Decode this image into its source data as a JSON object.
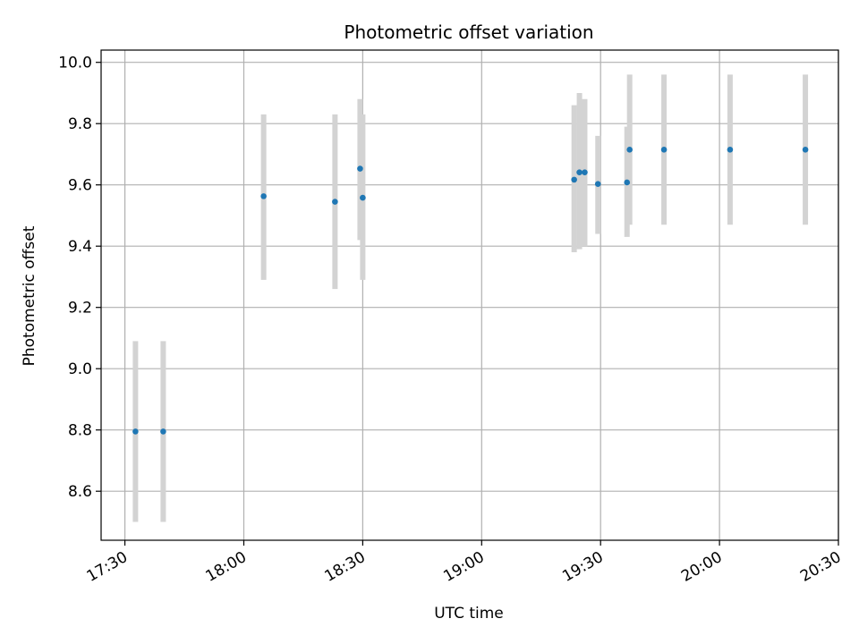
{
  "chart_data": {
    "type": "scatter",
    "title": "Photometric offset variation",
    "xlabel": "UTC time",
    "ylabel": "Photometric offset",
    "grid": true,
    "legend": "none",
    "colors": {
      "point": "#1f77b4",
      "errorbar": "#d3d3d3",
      "grid": "#b0b0b0",
      "axis": "#000000"
    },
    "xlim": [
      "17:24",
      "20:30"
    ],
    "ylim": [
      8.44,
      10.04
    ],
    "x_ticks": [
      "17:30",
      "18:00",
      "18:30",
      "19:00",
      "19:30",
      "20:00",
      "20:30"
    ],
    "y_ticks": [
      "8.6",
      "8.8",
      "9.0",
      "9.2",
      "9.4",
      "9.6",
      "9.8",
      "10.0"
    ],
    "points": [
      {
        "time": "17:32:40",
        "y": 8.795,
        "err_low": 8.5,
        "err_high": 9.09
      },
      {
        "time": "17:39:40",
        "y": 8.795,
        "err_low": 8.5,
        "err_high": 9.09
      },
      {
        "time": "18:05:00",
        "y": 9.563,
        "err_low": 9.29,
        "err_high": 9.83
      },
      {
        "time": "18:23:00",
        "y": 9.545,
        "err_low": 9.26,
        "err_high": 9.83
      },
      {
        "time": "18:29:20",
        "y": 9.653,
        "err_low": 9.42,
        "err_high": 9.88
      },
      {
        "time": "18:30:00",
        "y": 9.558,
        "err_low": 9.29,
        "err_high": 9.83
      },
      {
        "time": "19:23:20",
        "y": 9.617,
        "err_low": 9.38,
        "err_high": 9.86
      },
      {
        "time": "19:24:40",
        "y": 9.641,
        "err_low": 9.39,
        "err_high": 9.9
      },
      {
        "time": "19:26:00",
        "y": 9.641,
        "err_low": 9.4,
        "err_high": 9.88
      },
      {
        "time": "19:29:20",
        "y": 9.603,
        "err_low": 9.44,
        "err_high": 9.76
      },
      {
        "time": "19:36:40",
        "y": 9.608,
        "err_low": 9.43,
        "err_high": 9.79
      },
      {
        "time": "19:37:20",
        "y": 9.715,
        "err_low": 9.47,
        "err_high": 9.96
      },
      {
        "time": "19:46:00",
        "y": 9.715,
        "err_low": 9.47,
        "err_high": 9.96
      },
      {
        "time": "20:02:40",
        "y": 9.715,
        "err_low": 9.47,
        "err_high": 9.96
      },
      {
        "time": "20:21:40",
        "y": 9.715,
        "err_low": 9.47,
        "err_high": 9.96
      }
    ]
  }
}
